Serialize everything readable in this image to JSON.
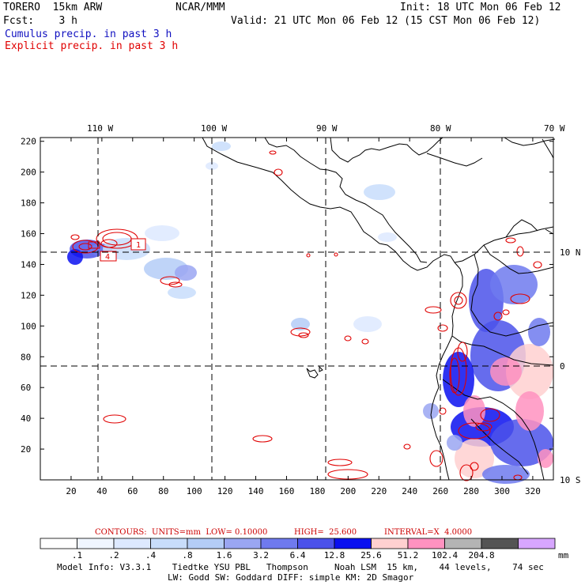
{
  "header": {
    "model": "TORERO  15km ARW",
    "center": "NCAR/MMM",
    "init": "Init: 18 UTC Mon 06 Feb 12",
    "fcst": "Fcst:    3 h",
    "valid": "Valid: 21 UTC Mon 06 Feb 12 (15 CST Mon 06 Feb 12)",
    "field1": "Cumulus precip. in past 3 h",
    "field2": "Explicit precip. in past 3 h"
  },
  "colors": {
    "field1": "#1010c0",
    "field2": "#e00000",
    "footer_red": "#cc0000"
  },
  "axes": {
    "top_lon": [
      "110 W",
      "100 W",
      "90 W",
      "80 W",
      "70 W"
    ],
    "right_lat": [
      "10 N",
      "0",
      "10 S"
    ],
    "y_ticks": [
      "20",
      "40",
      "60",
      "80",
      "100",
      "120",
      "140",
      "160",
      "180",
      "200",
      "220"
    ],
    "x_ticks": [
      "20",
      "40",
      "60",
      "80",
      "100",
      "120",
      "140",
      "160",
      "180",
      "200",
      "220",
      "240",
      "260",
      "280",
      "300",
      "320"
    ]
  },
  "contour_info": {
    "label": "CONTOURS:  UNITS=mm  LOW= 0.10000",
    "high": "HIGH=  25.600",
    "interval": "INTERVAL=X  4.0000"
  },
  "colorbar": {
    "colors": [
      "#ffffff",
      "#f0f6ff",
      "#dde9ff",
      "#c8ddfb",
      "#b4cdf7",
      "#9aa6f2",
      "#6f7aee",
      "#4b52ea",
      "#0a10f0",
      "#ffd0d0",
      "#ff92c0",
      "#b4b4b4",
      "#545454",
      "#d7a6ff"
    ],
    "labels": [
      ".1",
      ".2",
      ".4",
      ".8",
      "1.6",
      "3.2",
      "6.4",
      "12.8",
      "25.6",
      "51.2",
      "102.4",
      "204.8"
    ],
    "unit": "mm"
  },
  "footer": {
    "line1": "Model Info: V3.3.1    Tiedtke YSU PBL   Thompson     Noah LSM  15 km,    44 levels,    74 sec",
    "line2": "LW: Godd SW: Goddard DIFF: simple KM: 2D Smagor"
  },
  "map": {
    "box_labels": [
      "4",
      "1"
    ],
    "precip_blobs": [
      {
        "c": [
          110,
          315
        ],
        "r": [
          22,
          12
        ],
        "level": 7
      },
      {
        "c": [
          128,
          316
        ],
        "r": [
          14,
          8
        ],
        "level": 6
      },
      {
        "c": [
          95,
          325
        ],
        "r": [
          10,
          10
        ],
        "level": 8
      },
      {
        "c": [
          160,
          315
        ],
        "r": [
          30,
          14
        ],
        "level": 3
      },
      {
        "c": [
          210,
          340
        ],
        "r": [
          28,
          14
        ],
        "level": 4
      },
      {
        "c": [
          235,
          345
        ],
        "r": [
          14,
          10
        ],
        "level": 5
      },
      {
        "c": [
          230,
          370
        ],
        "r": [
          18,
          8
        ],
        "level": 3
      },
      {
        "c": [
          205,
          295
        ],
        "r": [
          22,
          10
        ],
        "level": 2
      },
      {
        "c": [
          280,
          185
        ],
        "r": [
          12,
          6
        ],
        "level": 3
      },
      {
        "c": [
          268,
          210
        ],
        "r": [
          8,
          5
        ],
        "level": 2
      },
      {
        "c": [
          480,
          243
        ],
        "r": [
          20,
          10
        ],
        "level": 3
      },
      {
        "c": [
          490,
          300
        ],
        "r": [
          12,
          6
        ],
        "level": 2
      },
      {
        "c": [
          380,
          410
        ],
        "r": [
          12,
          8
        ],
        "level": 4
      },
      {
        "c": [
          465,
          410
        ],
        "r": [
          18,
          10
        ],
        "level": 2
      },
      {
        "c": [
          615,
          380
        ],
        "r": [
          22,
          40
        ],
        "level": 7
      },
      {
        "c": [
          650,
          360
        ],
        "r": [
          30,
          25
        ],
        "level": 6
      },
      {
        "c": [
          630,
          450
        ],
        "r": [
          35,
          45
        ],
        "level": 7
      },
      {
        "c": [
          580,
          480
        ],
        "r": [
          20,
          35
        ],
        "level": 8
      },
      {
        "c": [
          670,
          470
        ],
        "r": [
          30,
          35
        ],
        "level": 9
      },
      {
        "c": [
          610,
          540
        ],
        "r": [
          40,
          25
        ],
        "level": 8
      },
      {
        "c": [
          660,
          560
        ],
        "r": [
          40,
          30
        ],
        "level": 7
      },
      {
        "c": [
          600,
          580
        ],
        "r": [
          25,
          25
        ],
        "level": 9
      },
      {
        "c": [
          640,
          600
        ],
        "r": [
          30,
          12
        ],
        "level": 6
      },
      {
        "c": [
          575,
          560
        ],
        "r": [
          10,
          10
        ],
        "level": 5
      },
      {
        "c": [
          682,
          420
        ],
        "r": [
          14,
          18
        ],
        "level": 6
      },
      {
        "c": [
          545,
          520
        ],
        "r": [
          10,
          10
        ],
        "level": 5
      },
      {
        "c": [
          670,
          520
        ],
        "r": [
          18,
          25
        ],
        "level": 10
      },
      {
        "c": [
          640,
          470
        ],
        "r": [
          20,
          18
        ],
        "level": 10
      },
      {
        "c": [
          600,
          520
        ],
        "r": [
          14,
          20
        ],
        "level": 10
      },
      {
        "c": [
          690,
          580
        ],
        "r": [
          10,
          12
        ],
        "level": 10
      }
    ]
  }
}
